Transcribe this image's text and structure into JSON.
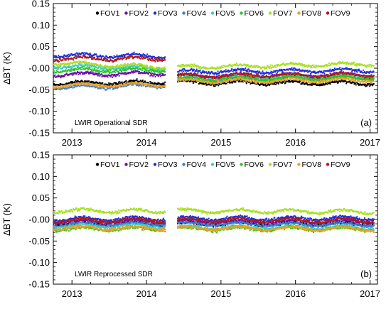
{
  "chart_data": [
    {
      "type": "scatter",
      "panel_tag": "(a)",
      "note": "LWIR Operational SDR",
      "ylabel": "ΔBT (K)",
      "xlabel": "",
      "xlim": [
        2012.75,
        2017.1
      ],
      "ylim": [
        -0.15,
        0.15
      ],
      "yticks": [
        "-0.15",
        "-0.10",
        "-0.05",
        "-0.00",
        "0.05",
        "0.10",
        "0.15"
      ],
      "xticks": [
        "2013",
        "2014",
        "2015",
        "2016",
        "2017"
      ],
      "data_gap": [
        2014.25,
        2014.42
      ],
      "legend_placement": "top",
      "series": [
        {
          "name": "FOV1",
          "color": "#000000",
          "segments": [
            [
              2012.75,
              -0.035,
              2014.25,
              -0.033
            ],
            [
              2014.42,
              -0.033,
              2017.05,
              -0.035
            ]
          ]
        },
        {
          "name": "FOV2",
          "color": "#6a0dad",
          "segments": [
            [
              2012.75,
              -0.015,
              2014.25,
              -0.012
            ],
            [
              2014.42,
              -0.018,
              2017.05,
              -0.015
            ]
          ]
        },
        {
          "name": "FOV3",
          "color": "#1e2fd8",
          "segments": [
            [
              2012.75,
              0.03,
              2014.25,
              0.028
            ],
            [
              2014.42,
              -0.008,
              2017.05,
              -0.005
            ]
          ]
        },
        {
          "name": "FOV4",
          "color": "#3a7fd0",
          "segments": [
            [
              2012.75,
              -0.045,
              2014.25,
              -0.04
            ],
            [
              2014.42,
              -0.028,
              2017.05,
              -0.022
            ]
          ]
        },
        {
          "name": "FOV5",
          "color": "#40c8c8",
          "segments": [
            [
              2012.75,
              0.005,
              2014.25,
              0.0
            ],
            [
              2014.42,
              -0.02,
              2017.05,
              -0.018
            ]
          ]
        },
        {
          "name": "FOV6",
          "color": "#28c828",
          "segments": [
            [
              2012.75,
              -0.005,
              2014.25,
              -0.004
            ],
            [
              2014.42,
              -0.025,
              2017.05,
              -0.022
            ]
          ]
        },
        {
          "name": "FOV7",
          "color": "#a8e020",
          "segments": [
            [
              2012.75,
              0.012,
              2014.25,
              0.003
            ],
            [
              2014.42,
              0.002,
              2017.05,
              0.01
            ]
          ]
        },
        {
          "name": "FOV8",
          "color": "#f0a020",
          "segments": [
            [
              2012.75,
              -0.04,
              2014.25,
              -0.038
            ],
            [
              2014.42,
              -0.03,
              2017.05,
              -0.028
            ]
          ]
        },
        {
          "name": "FOV9",
          "color": "#b01818",
          "segments": [
            [
              2012.75,
              0.022,
              2014.25,
              0.022
            ],
            [
              2014.42,
              -0.018,
              2017.05,
              -0.015
            ]
          ]
        }
      ]
    },
    {
      "type": "scatter",
      "panel_tag": "(b)",
      "note": "LWIR Reprocessed SDR",
      "ylabel": "ΔBT (K)",
      "xlabel": "",
      "xlim": [
        2012.75,
        2017.1
      ],
      "ylim": [
        -0.15,
        0.15
      ],
      "yticks": [
        "-0.15",
        "-0.10",
        "-0.05",
        "-0.00",
        "0.05",
        "0.10",
        "0.15"
      ],
      "xticks": [
        "2013",
        "2014",
        "2015",
        "2016",
        "2017"
      ],
      "data_gap": [
        2014.25,
        2014.42
      ],
      "legend_placement": "top",
      "series": [
        {
          "name": "FOV1",
          "color": "#000000",
          "segments": [
            [
              2012.75,
              -0.01,
              2014.25,
              -0.01
            ],
            [
              2014.42,
              -0.01,
              2017.05,
              -0.01
            ]
          ]
        },
        {
          "name": "FOV2",
          "color": "#6a0dad",
          "segments": [
            [
              2012.75,
              -0.005,
              2014.25,
              -0.005
            ],
            [
              2014.42,
              -0.005,
              2017.05,
              -0.005
            ]
          ]
        },
        {
          "name": "FOV3",
          "color": "#1e2fd8",
          "segments": [
            [
              2012.75,
              0.0,
              2014.25,
              0.002
            ],
            [
              2014.42,
              0.002,
              2017.05,
              0.003
            ]
          ]
        },
        {
          "name": "FOV4",
          "color": "#3a7fd0",
          "segments": [
            [
              2012.75,
              -0.012,
              2014.25,
              -0.01
            ],
            [
              2014.42,
              -0.01,
              2017.05,
              -0.012
            ]
          ]
        },
        {
          "name": "FOV5",
          "color": "#40c8c8",
          "segments": [
            [
              2012.75,
              -0.015,
              2014.25,
              -0.015
            ],
            [
              2014.42,
              -0.018,
              2017.05,
              -0.018
            ]
          ]
        },
        {
          "name": "FOV6",
          "color": "#28c828",
          "segments": [
            [
              2012.75,
              -0.022,
              2014.25,
              -0.022
            ],
            [
              2014.42,
              -0.022,
              2017.05,
              -0.022
            ]
          ]
        },
        {
          "name": "FOV7",
          "color": "#a8e020",
          "segments": [
            [
              2012.75,
              0.02,
              2014.25,
              0.02
            ],
            [
              2014.42,
              0.02,
              2017.05,
              0.018
            ]
          ]
        },
        {
          "name": "FOV8",
          "color": "#f0a020",
          "segments": [
            [
              2012.75,
              -0.02,
              2014.25,
              -0.02
            ],
            [
              2014.42,
              -0.02,
              2017.05,
              -0.022
            ]
          ]
        },
        {
          "name": "FOV9",
          "color": "#b01818",
          "segments": [
            [
              2012.75,
              -0.002,
              2014.25,
              -0.002
            ],
            [
              2014.42,
              -0.002,
              2017.05,
              -0.002
            ]
          ]
        }
      ]
    }
  ]
}
